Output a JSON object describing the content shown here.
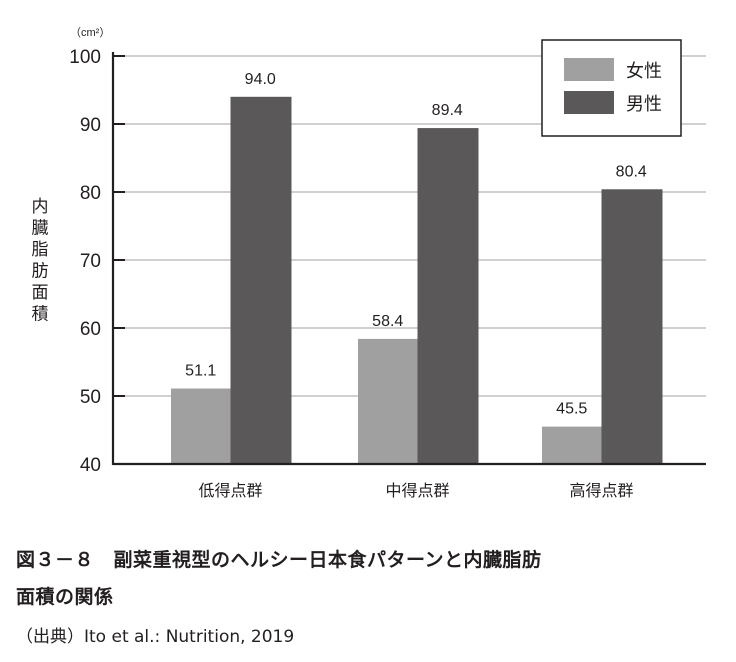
{
  "chart_data": {
    "type": "bar",
    "title": "",
    "unit": "（cm²）",
    "ylabel": "内臓脂肪面積",
    "xlabel": "",
    "ylim": [
      40,
      100
    ],
    "yticks": [
      40,
      50,
      60,
      70,
      80,
      90,
      100
    ],
    "grid": true,
    "legend_position": "top-right",
    "categories": [
      "低得点群",
      "中得点群",
      "高得点群"
    ],
    "series": [
      {
        "name": "女性",
        "color": "#a0a0a0",
        "values": [
          51.1,
          58.4,
          45.5
        ],
        "labels": [
          "51.1",
          "58.4",
          "45.5"
        ]
      },
      {
        "name": "男性",
        "color": "#5a5859",
        "values": [
          94.0,
          89.4,
          80.4
        ],
        "labels": [
          "94.0",
          "89.4",
          "80.4"
        ]
      }
    ]
  },
  "caption": {
    "line1": "図３－８　副菜重視型のヘルシー日本食パターンと内臓脂肪",
    "line2": "面積の関係",
    "source": "（出典）Ito et al.: Nutrition, 2019"
  }
}
